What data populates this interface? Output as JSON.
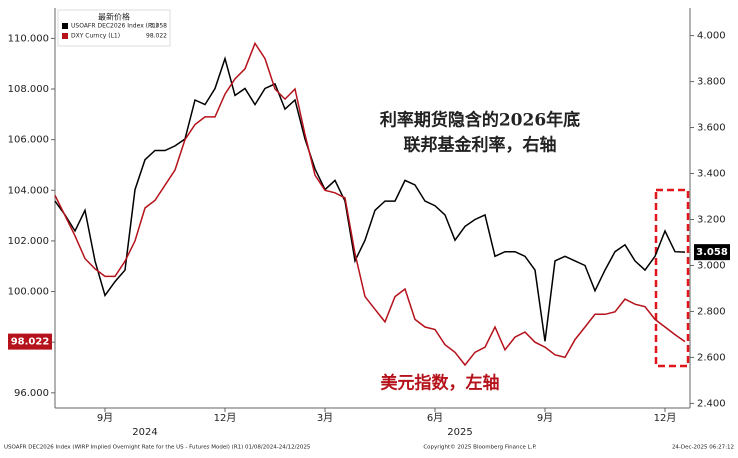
{
  "chart_data": {
    "type": "line",
    "legend_title": "最新价格",
    "annotations": [
      "利率期货隐含的2026年底",
      "联邦基金利率，右轴",
      "美元指数，左轴"
    ],
    "footer_left": "USOAFR DEC2026 Index (WIRP Implied Overnight Rate for the US - Futures Model) (R1) 01/08/2024-24/12/2025",
    "footer_center": "Copyright© 2025 Bloomberg Finance L.P.",
    "footer_right": "24-Dec-2025 06:27:12",
    "categories": [
      null,
      null,
      null,
      null,
      null,
      "9月",
      null,
      null,
      null,
      null,
      null,
      null,
      null,
      null,
      null,
      null,
      null,
      "12月",
      null,
      null,
      null,
      null,
      null,
      null,
      null,
      null,
      null,
      "3月",
      null,
      null,
      null,
      null,
      null,
      null,
      null,
      null,
      null,
      null,
      "6月",
      null,
      null,
      null,
      null,
      null,
      null,
      null,
      null,
      null,
      null,
      "9月",
      null,
      null,
      null,
      null,
      null,
      null,
      null,
      null,
      null,
      null,
      null,
      "12月",
      null,
      null
    ],
    "year_labels": [
      "2024",
      "2025"
    ],
    "series": [
      {
        "name": "USOAFR DEC2026 Index (R1)",
        "color": "#000000",
        "axis": "y2",
        "values": [
          3.28,
          3.22,
          3.15,
          3.24,
          3.02,
          2.87,
          2.93,
          2.98,
          3.33,
          3.46,
          3.5,
          3.5,
          3.52,
          3.55,
          3.72,
          3.7,
          3.77,
          3.9,
          3.74,
          3.77,
          3.7,
          3.77,
          3.79,
          3.68,
          3.72,
          3.55,
          3.42,
          3.33,
          3.37,
          3.28,
          3.02,
          3.11,
          3.24,
          3.28,
          3.28,
          3.37,
          3.35,
          3.28,
          3.26,
          3.22,
          3.11,
          3.17,
          3.2,
          3.22,
          3.04,
          3.06,
          3.06,
          3.04,
          2.98,
          2.67,
          3.02,
          3.04,
          3.02,
          3.0,
          2.89,
          2.98,
          3.06,
          3.09,
          3.02,
          2.98,
          3.04,
          3.15,
          3.06,
          3.058
        ]
      },
      {
        "name": "DXY Curncy (L1)",
        "color": "#b5121b",
        "values": [
          103.8,
          103.0,
          102.2,
          101.3,
          100.9,
          100.6,
          100.6,
          101.2,
          102.0,
          103.3,
          103.6,
          104.2,
          104.8,
          106.0,
          106.6,
          106.9,
          106.9,
          107.8,
          108.4,
          108.8,
          109.8,
          109.2,
          108.0,
          107.6,
          108.0,
          106.2,
          104.6,
          104.0,
          103.9,
          103.7,
          101.5,
          99.8,
          99.3,
          98.8,
          99.8,
          100.1,
          98.9,
          98.6,
          98.5,
          97.9,
          97.6,
          97.1,
          97.6,
          97.8,
          98.6,
          97.7,
          98.2,
          98.4,
          98.0,
          97.8,
          97.5,
          97.4,
          98.1,
          98.6,
          99.1,
          99.1,
          99.2,
          99.7,
          99.5,
          99.4,
          98.9,
          98.6,
          98.3,
          98.022
        ]
      }
    ],
    "ylim": [
      95.4,
      111.2
    ],
    "yticks": [
      {
        "value": 96,
        "label": "96.000"
      },
      {
        "value": 98,
        "label": "98.000"
      },
      {
        "value": 100,
        "label": "100.000"
      },
      {
        "value": 102,
        "label": "102.000"
      },
      {
        "value": 104,
        "label": "104.000"
      },
      {
        "value": 106,
        "label": "106.000"
      },
      {
        "value": 108,
        "label": "108.000"
      },
      {
        "value": 110,
        "label": "110.000"
      }
    ],
    "y2lim": [
      2.38,
      4.12
    ],
    "y2ticks": [
      {
        "value": 2.4,
        "label": "2.400"
      },
      {
        "value": 2.6,
        "label": "2.600"
      },
      {
        "value": 2.8,
        "label": "2.800"
      },
      {
        "value": 3.0,
        "label": "3.000"
      },
      {
        "value": 3.2,
        "label": "3.200"
      },
      {
        "value": 3.4,
        "label": "3.400"
      },
      {
        "value": 3.6,
        "label": "3.600"
      },
      {
        "value": 3.8,
        "label": "3.800"
      },
      {
        "value": 4.0,
        "label": "4.000"
      }
    ],
    "grid": false
  }
}
